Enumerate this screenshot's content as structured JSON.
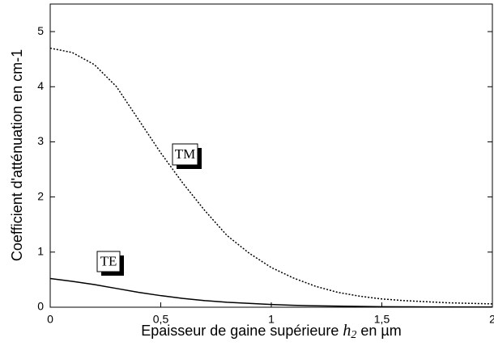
{
  "chart_data": {
    "type": "line",
    "ylabel": "Coefficient d'atténuation en cm-1",
    "xlabel": {
      "before": "Epaisseur de gaine supérieure",
      "var": "h",
      "sub": "2",
      "after": "en µm"
    },
    "x": [
      0,
      0.1,
      0.2,
      0.3,
      0.4,
      0.5,
      0.6,
      0.7,
      0.8,
      0.9,
      1.0,
      1.1,
      1.2,
      1.3,
      1.4,
      1.5,
      1.6,
      1.7,
      1.8,
      1.9,
      2.0
    ],
    "series": [
      {
        "name": "TM",
        "color": "#000000",
        "dash": "dotted",
        "values": [
          4.7,
          4.62,
          4.4,
          4.0,
          3.4,
          2.8,
          2.25,
          1.75,
          1.3,
          0.98,
          0.72,
          0.53,
          0.38,
          0.27,
          0.2,
          0.15,
          0.12,
          0.1,
          0.08,
          0.07,
          0.06
        ]
      },
      {
        "name": "TE",
        "color": "#000000",
        "dash": "solid",
        "values": [
          0.52,
          0.47,
          0.41,
          0.34,
          0.27,
          0.21,
          0.16,
          0.12,
          0.09,
          0.07,
          0.05,
          0.035,
          0.025,
          0.02,
          0.015,
          0.01,
          0.008,
          0.006,
          0.005,
          0.004,
          0.003
        ]
      }
    ],
    "xlim": [
      0,
      2
    ],
    "ylim": [
      0,
      5.5
    ],
    "xticks": [
      0,
      {
        "value": 0.5,
        "label": "0,5"
      },
      1,
      {
        "value": 1.5,
        "label": "1,5"
      },
      2
    ],
    "yticks": [
      0,
      1,
      2,
      3,
      4,
      5
    ],
    "grid": false
  }
}
